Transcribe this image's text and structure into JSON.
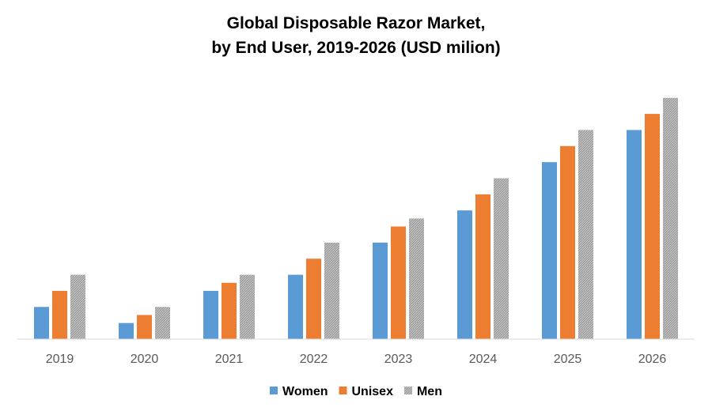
{
  "chart_data": {
    "type": "bar",
    "title_line1": "Global Disposable Razor Market,",
    "title_line2": "by End User, 2019-2026 (USD milion)",
    "xlabel": "",
    "ylabel": "",
    "categories": [
      "2019",
      "2020",
      "2021",
      "2022",
      "2023",
      "2024",
      "2025",
      "2026"
    ],
    "series": [
      {
        "name": "Women",
        "color": "#5B9BD5",
        "values": [
          2,
          1,
          3,
          4,
          6,
          8,
          11,
          13
        ]
      },
      {
        "name": "Unisex",
        "color": "#ED7D31",
        "values": [
          3,
          1.5,
          3.5,
          5,
          7,
          9,
          12,
          14
        ]
      },
      {
        "name": "Men",
        "color": "#A5A5A5",
        "values": [
          4,
          2,
          4,
          6,
          7.5,
          10,
          13,
          15
        ]
      }
    ],
    "ylim": [
      0,
      15
    ],
    "grid": false,
    "legend_position": "bottom",
    "y_axis_visible": false
  }
}
